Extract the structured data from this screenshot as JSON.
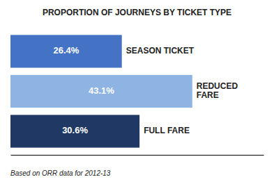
{
  "chart_data": {
    "type": "bar",
    "orientation": "horizontal",
    "title": "PROPORTION OF JOURNEYS BY TICKET TYPE",
    "categories": [
      "SEASON TICKET",
      "REDUCED\nFARE",
      "FULL FARE"
    ],
    "values": [
      26.4,
      43.1,
      30.6
    ],
    "value_labels": [
      "26.4%",
      "43.1%",
      "30.6%"
    ],
    "colors": [
      "#4472C4",
      "#8EB4E3",
      "#1F3864"
    ],
    "xlim": [
      0,
      60
    ],
    "data_labels": true,
    "tick_labels": false,
    "grid": false,
    "annotations": [
      "Based on ORR data for 2012-13"
    ]
  }
}
